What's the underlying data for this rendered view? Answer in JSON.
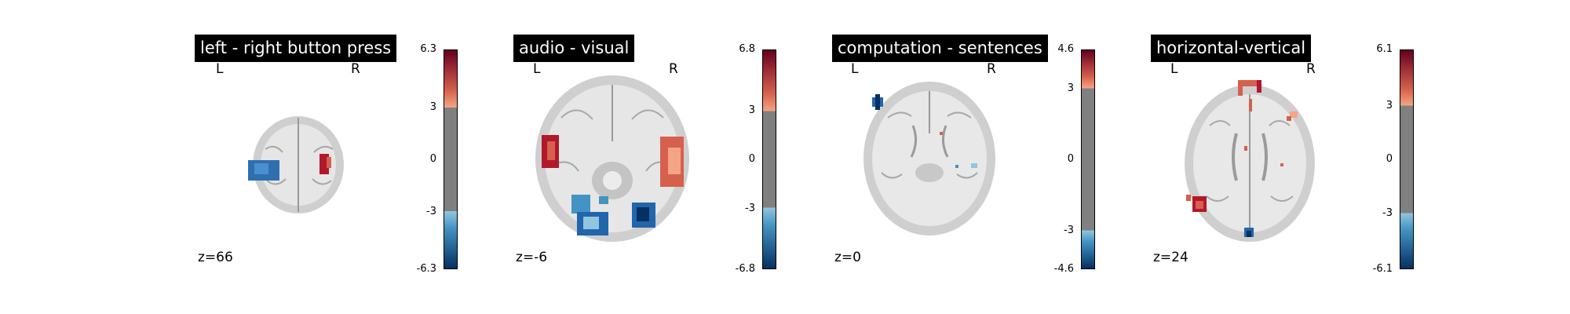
{
  "panels": [
    {
      "title": "left - right button press",
      "left_marker": "L",
      "right_marker": "R",
      "slice_label": "z=66",
      "colorbar": {
        "max": "6.3",
        "upper": "3",
        "zero": "0",
        "lower": "-3",
        "min": "-6.3"
      },
      "threshold_fraction": 0.476
    },
    {
      "title": "audio - visual",
      "left_marker": "L",
      "right_marker": "R",
      "slice_label": "z=-6",
      "colorbar": {
        "max": "6.8",
        "upper": "3",
        "zero": "0",
        "lower": "-3",
        "min": "-6.8"
      },
      "threshold_fraction": 0.441
    },
    {
      "title": "computation - sentences",
      "left_marker": "L",
      "right_marker": "R",
      "slice_label": "z=0",
      "colorbar": {
        "max": "4.6",
        "upper": "3",
        "zero": "0",
        "lower": "-3",
        "min": "-4.6"
      },
      "threshold_fraction": 0.652
    },
    {
      "title": "horizontal-vertical",
      "left_marker": "L",
      "right_marker": "R",
      "slice_label": "z=24",
      "colorbar": {
        "max": "6.1",
        "upper": "3",
        "zero": "0",
        "lower": "-3",
        "min": "-6.1"
      },
      "threshold_fraction": 0.492
    }
  ],
  "colors": {
    "positive_max": "#67001f",
    "positive_mid": "#d6604d",
    "positive_low": "#f4a582",
    "neutral": "#808080",
    "negative_low": "#92c5de",
    "negative_mid": "#4393c3",
    "negative_max": "#053061",
    "brain_bg": "#d9d9d9"
  }
}
